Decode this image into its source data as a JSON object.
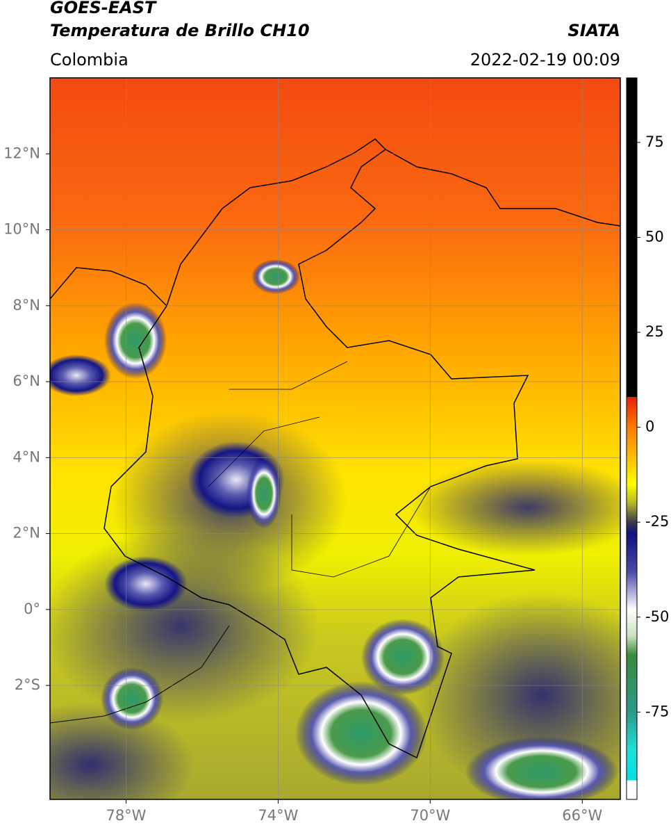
{
  "chart_data": {
    "type": "map",
    "title": "GOES-EAST",
    "subtitle": "Temperatura de Brillo CH10",
    "source": "SIATA",
    "region": "Colombia",
    "date": "2022-02-19 00:09",
    "xlim": [
      -80,
      -65
    ],
    "ylim": [
      -5,
      14
    ],
    "xticks": [
      {
        "value": -78,
        "label": "78°W"
      },
      {
        "value": -74,
        "label": "74°W"
      },
      {
        "value": -70,
        "label": "70°W"
      },
      {
        "value": -66,
        "label": "66°W"
      }
    ],
    "yticks": [
      {
        "value": 12,
        "label": "12°N"
      },
      {
        "value": 10,
        "label": "10°N"
      },
      {
        "value": 8,
        "label": "8°N"
      },
      {
        "value": 6,
        "label": "6°N"
      },
      {
        "value": 4,
        "label": "4°N"
      },
      {
        "value": 2,
        "label": "2°N"
      },
      {
        "value": 0,
        "label": "0°"
      },
      {
        "value": -2,
        "label": "2°S"
      }
    ],
    "grid": true,
    "colorbar": {
      "lim": [
        -98,
        92
      ],
      "ticks": [
        75,
        50,
        25,
        0,
        -25,
        -50,
        -75
      ],
      "colormap": [
        {
          "value": 92,
          "color": "#000000"
        },
        {
          "value": 8,
          "color": "#000000"
        },
        {
          "value": 8,
          "color": "#e81e0a"
        },
        {
          "value": 0,
          "color": "#ff7a00"
        },
        {
          "value": -10,
          "color": "#ffd000"
        },
        {
          "value": -15,
          "color": "#ffff00"
        },
        {
          "value": -20,
          "color": "#b5b52a"
        },
        {
          "value": -25,
          "color": "#3a3a4a"
        },
        {
          "value": -28,
          "color": "#101080"
        },
        {
          "value": -38,
          "color": "#4a4aa8"
        },
        {
          "value": -48,
          "color": "#ffffff"
        },
        {
          "value": -55,
          "color": "#c8e0c0"
        },
        {
          "value": -60,
          "color": "#3a8a3a"
        },
        {
          "value": -75,
          "color": "#2a9a8a"
        },
        {
          "value": -85,
          "color": "#20e0d8"
        },
        {
          "value": -93,
          "color": "#00e0e0"
        },
        {
          "value": -93,
          "color": "#ffffff"
        },
        {
          "value": -98,
          "color": "#ffffff"
        }
      ]
    }
  }
}
